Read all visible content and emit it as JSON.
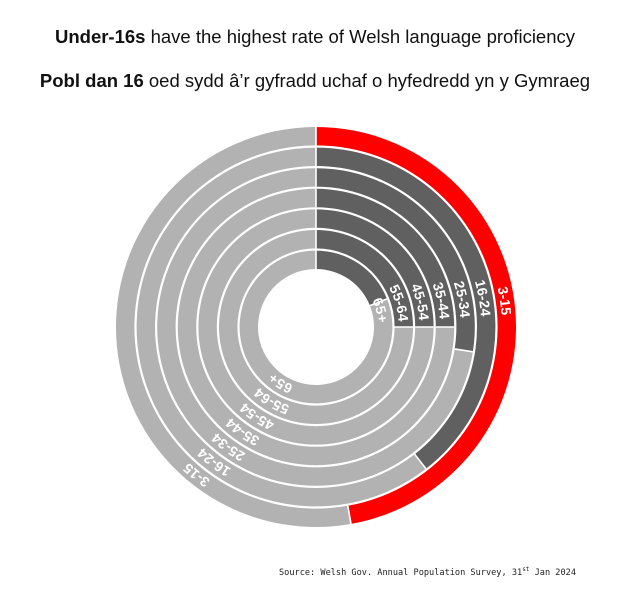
{
  "title_en": {
    "bold": "Under-16s",
    "rest": " have the highest rate of Welsh language proficiency"
  },
  "title_cy": {
    "bold": "Pobl dan 16",
    "rest": " oed sydd â’r gyfradd uchaf o hyfedredd yn y Gymraeg"
  },
  "source": {
    "prefix": "Source: Welsh Gov. Annual Population Survey, 31",
    "sup": "st",
    "suffix": " Jan 2024"
  },
  "colors": {
    "highlight": "#ff0000",
    "value": "#606060",
    "remainder": "#b2b2b2",
    "background": "#ffffff",
    "separator": "#ffffff"
  },
  "chart_data": {
    "type": "radial_bar",
    "unit": "share of group able to speak Welsh (estimated)",
    "highlight_category": "3-15",
    "categories": [
      "3-15",
      "16-24",
      "25-34",
      "35-44",
      "45-54",
      "55-64",
      "65+"
    ],
    "values": [
      0.472,
      0.395,
      0.275,
      0.25,
      0.25,
      0.25,
      0.19
    ],
    "max": 1.0
  }
}
